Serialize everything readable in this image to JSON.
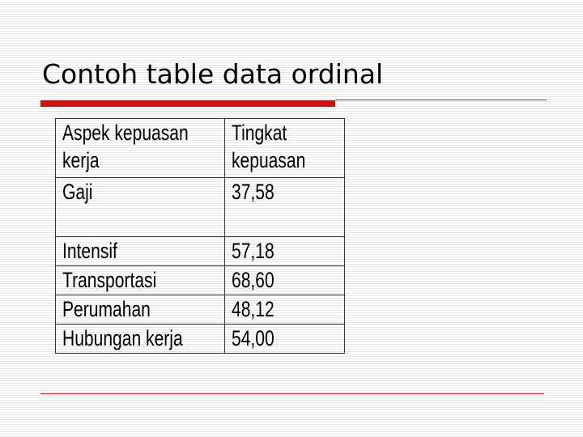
{
  "title": "Contoh table data ordinal",
  "table": {
    "headers": [
      "Aspek kepuasan",
      "kerja",
      "Tingkat",
      "kepuasan"
    ],
    "rows": [
      {
        "aspek": "Gaji",
        "tingkat": "37,58"
      },
      {
        "aspek": "Intensif",
        "tingkat": "57,18"
      },
      {
        "aspek": "Transportasi",
        "tingkat": "68,60"
      },
      {
        "aspek": "Perumahan",
        "tingkat": "48,12"
      },
      {
        "aspek": "Hubungan kerja",
        "tingkat": "54,00"
      }
    ]
  },
  "colors": {
    "accent": "#cc1111"
  }
}
